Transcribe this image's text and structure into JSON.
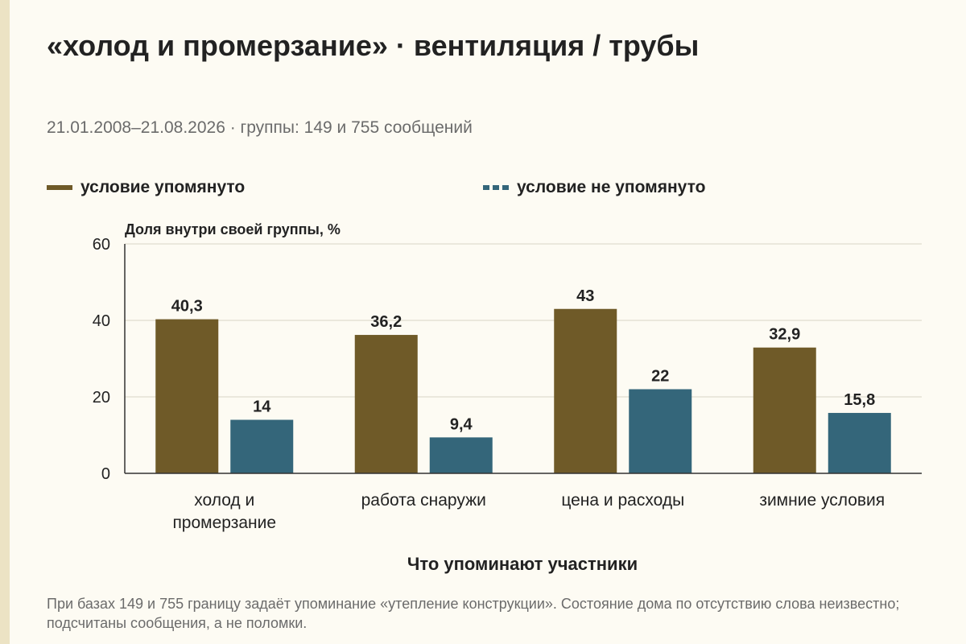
{
  "title": "«холод и промерзание» · вентиляция / трубы",
  "subtitle": "21.01.2008–21.08.2026 · группы: 149 и 755 сообщений",
  "footnote": "При базах 149 и 755 границу задаёт упоминание «утепление конструкции». Состояние дома по отсутствию слова неизвестно; подсчитаны сообщения, а не поломки.",
  "colors": {
    "mentioned": "#6f5a28",
    "not_mentioned": "#34667a",
    "grid": "#d9d4c5",
    "axis": "#333333",
    "text": "#222222",
    "muted": "#6b6b6b",
    "background": "#fdfbf3"
  },
  "chart_data": {
    "type": "bar",
    "ylabel": "Доля внутри своей группы, %",
    "xlabel": "Что упоминают участники",
    "ylim": [
      0,
      60
    ],
    "yticks": [
      0,
      20,
      40,
      60
    ],
    "grid": true,
    "legend_position": "top",
    "categories": [
      [
        "холод и",
        "промерзание"
      ],
      [
        "работа снаружи"
      ],
      [
        "цена и расходы"
      ],
      [
        "зимние условия"
      ]
    ],
    "series": [
      {
        "name": "условие упомянуто",
        "values": [
          40.3,
          36.2,
          43,
          32.9
        ],
        "labels": [
          "40,3",
          "36,2",
          "43",
          "32,9"
        ]
      },
      {
        "name": "условие не упомянуто",
        "values": [
          14,
          9.4,
          22,
          15.8
        ],
        "labels": [
          "14",
          "9,4",
          "22",
          "15,8"
        ]
      }
    ]
  }
}
